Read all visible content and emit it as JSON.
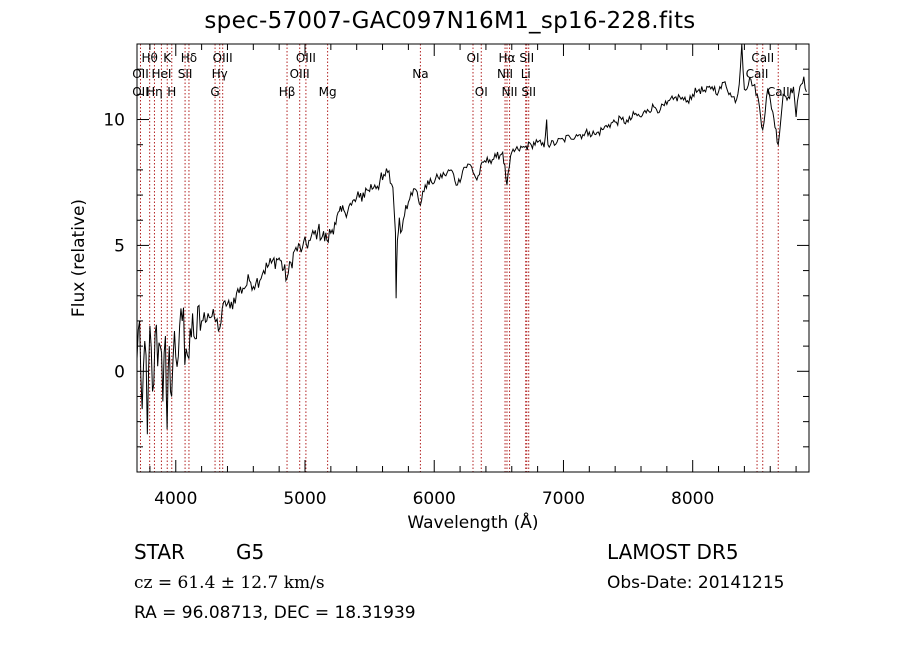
{
  "header": {
    "title": "spec-57007-GAC097N16M1_sp16-228.fits"
  },
  "info": {
    "object_type": "STAR",
    "subclass": "G5",
    "survey": "LAMOST DR5",
    "cz": "cz = 61.4 ± 12.7 km/s",
    "obs_date": "Obs-Date: 20141215",
    "radec": "RA =  96.08713, DEC =  18.31939"
  },
  "colors": {
    "spectrum": "#000000",
    "line_markers": "#b22222",
    "axes": "#000000"
  },
  "chart_data": {
    "type": "line",
    "title": "spec-57007-GAC097N16M1_sp16-228.fits",
    "xlabel": "Wavelength (Å)",
    "ylabel": "Flux (relative)",
    "xlim": [
      3700,
      8900
    ],
    "ylim": [
      -4,
      13
    ],
    "x_ticks": [
      4000,
      5000,
      6000,
      7000,
      8000
    ],
    "y_ticks": [
      0,
      5,
      10
    ],
    "grid": false,
    "series": [
      {
        "x": [
          3700,
          3720,
          3740,
          3760,
          3780,
          3800,
          3820,
          3840,
          3860,
          3880,
          3900,
          3920,
          3933,
          3950,
          3968,
          3990,
          4020,
          4050,
          4080,
          4102,
          4130,
          4160,
          4200,
          4250,
          4300,
          4340,
          4380,
          4420,
          4470,
          4520,
          4570,
          4620,
          4680,
          4740,
          4800,
          4861,
          4920,
          4980,
          5040,
          5100,
          5170,
          5230,
          5300,
          5360,
          5420,
          5480,
          5540,
          5600,
          5640,
          5680,
          5700,
          5705,
          5715,
          5730,
          5750,
          5780,
          5820,
          5860,
          5893,
          5930,
          5980,
          6030,
          6080,
          6130,
          6180,
          6230,
          6280,
          6330,
          6380,
          6430,
          6480,
          6530,
          6563,
          6600,
          6650,
          6700,
          6750,
          6800,
          6850,
          6870,
          6880,
          6900,
          6950,
          7000,
          7050,
          7100,
          7150,
          7200,
          7250,
          7300,
          7350,
          7400,
          7450,
          7500,
          7550,
          7600,
          7650,
          7700,
          7750,
          7800,
          7850,
          7900,
          7950,
          8000,
          8050,
          8100,
          8150,
          8200,
          8250,
          8300,
          8340,
          8360,
          8380,
          8400,
          8450,
          8500,
          8542,
          8580,
          8620,
          8662,
          8700,
          8740,
          8780,
          8800,
          8820,
          8840,
          8860,
          8880
        ],
        "y": [
          0.5,
          2.0,
          -1.5,
          1.2,
          -2.5,
          1.8,
          -0.8,
          1.5,
          0.2,
          1.0,
          -1.2,
          1.4,
          -2.3,
          1.0,
          -1.0,
          1.6,
          0.6,
          2.0,
          0.9,
          0.5,
          2.3,
          1.3,
          2.0,
          2.3,
          2.1,
          1.7,
          2.8,
          2.5,
          3.1,
          3.3,
          3.6,
          3.5,
          4.0,
          4.3,
          4.5,
          3.7,
          4.8,
          4.9,
          5.2,
          5.6,
          5.2,
          5.9,
          6.4,
          6.6,
          6.9,
          7.2,
          7.4,
          7.6,
          7.9,
          7.3,
          5.5,
          2.9,
          5.2,
          6.1,
          5.6,
          6.6,
          7.1,
          7.2,
          6.6,
          7.4,
          7.5,
          7.7,
          7.8,
          8.0,
          7.4,
          8.1,
          8.2,
          7.6,
          8.3,
          8.4,
          8.5,
          8.7,
          7.4,
          8.7,
          8.8,
          8.9,
          9.0,
          9.1,
          8.9,
          10.0,
          9.0,
          9.0,
          9.1,
          9.2,
          9.3,
          9.4,
          9.4,
          9.5,
          9.4,
          9.6,
          9.8,
          9.9,
          10.0,
          9.9,
          10.2,
          10.1,
          10.4,
          10.5,
          10.4,
          10.6,
          10.8,
          10.9,
          10.7,
          11.0,
          11.2,
          11.1,
          11.3,
          11.1,
          11.5,
          10.9,
          10.8,
          11.4,
          13.0,
          11.2,
          11.6,
          11.0,
          9.6,
          11.2,
          10.3,
          9.0,
          11.0,
          10.9,
          11.3,
          10.1,
          11.0,
          11.4,
          11.7,
          11.1
        ]
      }
    ],
    "lines": [
      {
        "label": "Hθ",
        "wave": 3798,
        "row": 1
      },
      {
        "label": "OII",
        "wave": 3727,
        "row": 2
      },
      {
        "label": "OII",
        "wave": 3727,
        "row": 3
      },
      {
        "label": "K",
        "wave": 3934,
        "row": 1
      },
      {
        "label": "HeI",
        "wave": 3889,
        "row": 2
      },
      {
        "label": "Hη",
        "wave": 3835,
        "row": 3
      },
      {
        "label": "H",
        "wave": 3969,
        "row": 3
      },
      {
        "label": "Hδ",
        "wave": 4102,
        "row": 1
      },
      {
        "label": "SII",
        "wave": 4072,
        "row": 2
      },
      {
        "label": "OIII",
        "wave": 4363,
        "row": 1
      },
      {
        "label": "Hγ",
        "wave": 4340,
        "row": 2
      },
      {
        "label": "G",
        "wave": 4304,
        "row": 3
      },
      {
        "label": "OIII",
        "wave": 5007,
        "row": 1
      },
      {
        "label": "OIII",
        "wave": 4959,
        "row": 2
      },
      {
        "label": "Hβ",
        "wave": 4861,
        "row": 3
      },
      {
        "label": "Mg",
        "wave": 5175,
        "row": 3
      },
      {
        "label": "Na",
        "wave": 5893,
        "row": 2
      },
      {
        "label": "OI",
        "wave": 6300,
        "row": 1
      },
      {
        "label": "OI",
        "wave": 6364,
        "row": 3
      },
      {
        "label": "Hα",
        "wave": 6563,
        "row": 1
      },
      {
        "label": "NII",
        "wave": 6548,
        "row": 2
      },
      {
        "label": "NII",
        "wave": 6583,
        "row": 3
      },
      {
        "label": "SII",
        "wave": 6716,
        "row": 1
      },
      {
        "label": "Li",
        "wave": 6708,
        "row": 2
      },
      {
        "label": "SII",
        "wave": 6731,
        "row": 3
      },
      {
        "label": "CaII",
        "wave": 8542,
        "row": 1
      },
      {
        "label": "CaII",
        "wave": 8498,
        "row": 2
      },
      {
        "label": "CaII",
        "wave": 8662,
        "row": 3
      }
    ]
  }
}
